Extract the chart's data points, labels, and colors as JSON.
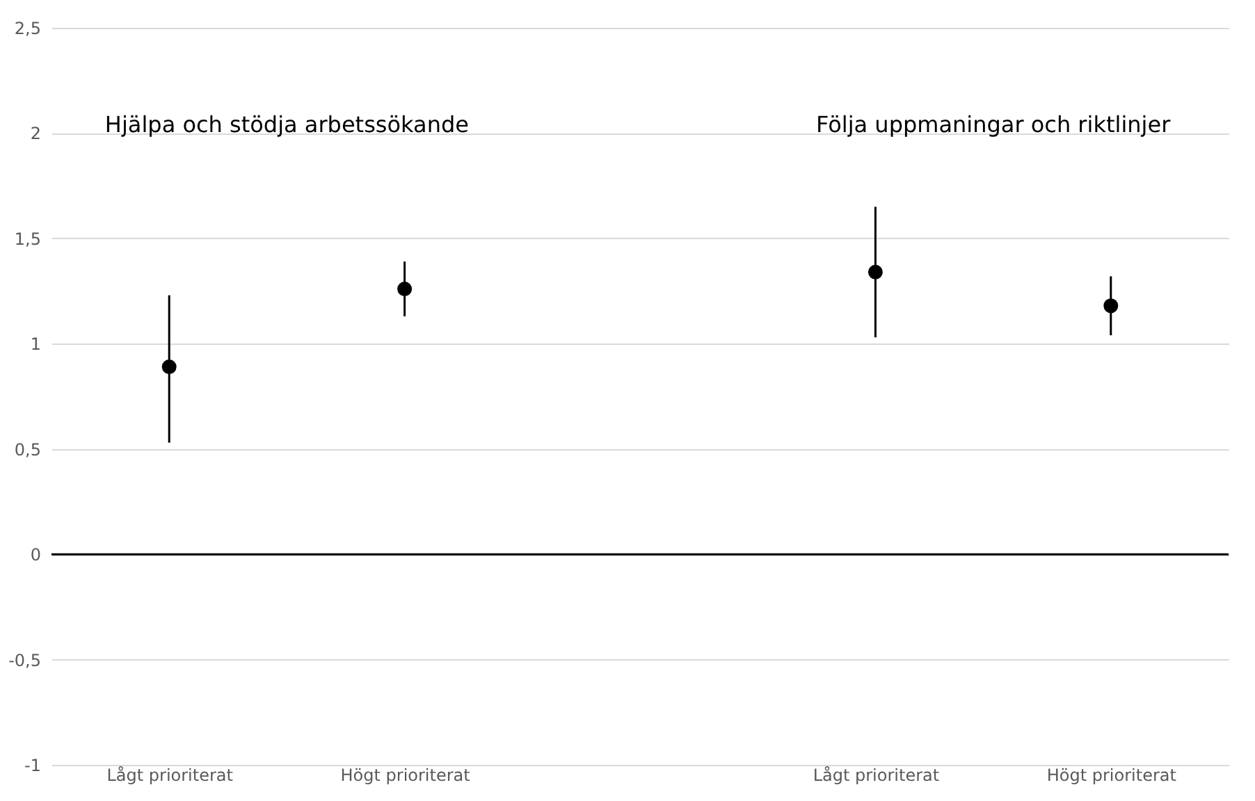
{
  "chart_data": {
    "type": "scatter",
    "categories": [
      "Lågt prioriterat",
      "Högt prioriterat",
      null,
      "Lågt prioriterat",
      "Högt prioriterat"
    ],
    "values": [
      0.89,
      1.26,
      null,
      1.34,
      1.18
    ],
    "errors": [
      [
        0.53,
        1.23
      ],
      [
        1.13,
        1.39
      ],
      null,
      [
        1.03,
        1.65
      ],
      [
        1.04,
        1.32
      ]
    ],
    "color": "#000000",
    "marker": "circle",
    "ylim": [
      -1,
      2.5
    ],
    "yticks": [
      {
        "value": -1,
        "label": "-1"
      },
      {
        "value": -0.5,
        "label": "-0,5"
      },
      {
        "value": 0,
        "label": "0"
      },
      {
        "value": 0.5,
        "label": "0,5"
      },
      {
        "value": 1,
        "label": "1"
      },
      {
        "value": 1.5,
        "label": "1,5"
      },
      {
        "value": 2,
        "label": "2"
      },
      {
        "value": 2.5,
        "label": "2,5"
      }
    ],
    "grid": "y",
    "ref_lines": [
      {
        "axis": "y",
        "value": 0,
        "color": "#000000"
      }
    ],
    "annotations": [
      "Hjälpa och stödja arbetssökande",
      "Följa uppmaningar och riktlinjer"
    ]
  }
}
